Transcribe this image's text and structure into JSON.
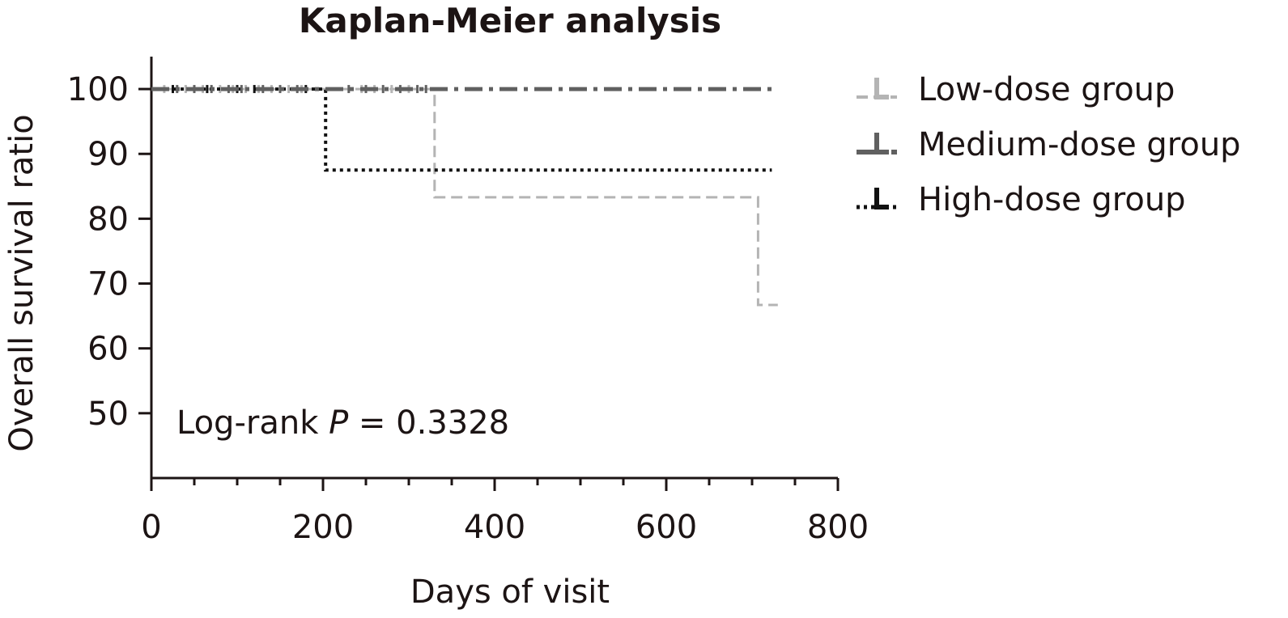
{
  "chart_data": {
    "type": "line",
    "title": "Kaplan-Meier analysis",
    "xlabel": "Days of visit",
    "ylabel": "Overall survival ratio",
    "xlim": [
      0,
      800
    ],
    "ylim": [
      40,
      105
    ],
    "x_ticks": [
      0,
      200,
      400,
      600,
      800
    ],
    "y_ticks": [
      50,
      60,
      70,
      80,
      90,
      100
    ],
    "grid": false,
    "legend_position": "top-right",
    "annotation": {
      "prefix": "Log-rank ",
      "symbol": "P",
      "suffix": " = 0.3328"
    },
    "series": [
      {
        "name": "Low-dose group",
        "color": "#b4b4b4",
        "style": "dashed",
        "steps": [
          [
            0,
            100
          ],
          [
            330,
            100
          ],
          [
            330,
            83.3
          ],
          [
            707,
            83.3
          ],
          [
            707,
            66.7
          ],
          [
            730,
            66.7
          ]
        ],
        "censored": [
          15,
          40,
          60,
          80,
          95,
          110,
          125,
          140,
          160,
          175,
          245,
          260,
          280,
          300
        ]
      },
      {
        "name": "Medium-dose group",
        "color": "#606060",
        "style": "dash-dot",
        "steps": [
          [
            0,
            100
          ],
          [
            730,
            100
          ]
        ],
        "censored": [
          30,
          50,
          70,
          90,
          105,
          130,
          150,
          170,
          230,
          250,
          270,
          290,
          310,
          320
        ]
      },
      {
        "name": "High-dose group",
        "color": "#111111",
        "style": "dotted",
        "steps": [
          [
            0,
            100
          ],
          [
            203,
            100
          ],
          [
            203,
            87.5
          ],
          [
            723,
            87.5
          ]
        ],
        "censored": [
          25,
          65,
          100,
          120,
          180
        ]
      }
    ]
  }
}
